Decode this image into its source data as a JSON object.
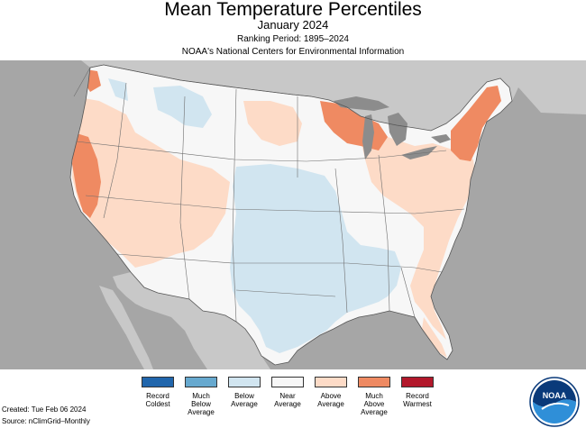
{
  "header": {
    "title": "Mean Temperature Percentiles",
    "subtitle": "January 2024",
    "ranking_period": "Ranking Period: 1895–2024",
    "organization": "NOAA's National Centers for Environmental Information"
  },
  "legend": {
    "items": [
      {
        "label": "Record\nColdest",
        "color": "#2166ac"
      },
      {
        "label": "Much\nBelow\nAverage",
        "color": "#67a9cf"
      },
      {
        "label": "Below\nAverage",
        "color": "#d1e5f0"
      },
      {
        "label": "Near\nAverage",
        "color": "#f7f7f7"
      },
      {
        "label": "Above\nAverage",
        "color": "#fddbc7"
      },
      {
        "label": "Much\nAbove\nAverage",
        "color": "#ef8a62"
      },
      {
        "label": "Record\nWarmest",
        "color": "#b2182b"
      }
    ]
  },
  "footer": {
    "created": "Created: Tue Feb 06 2024",
    "source": "Source: nClimGrid–Monthly"
  },
  "logo": {
    "text": "NOAA"
  },
  "colors": {
    "ocean": "#a6a6a6",
    "land_outside": "#c8c8c8",
    "lakes": "#8c8c8c",
    "state_lines": "#6e6e6e"
  }
}
